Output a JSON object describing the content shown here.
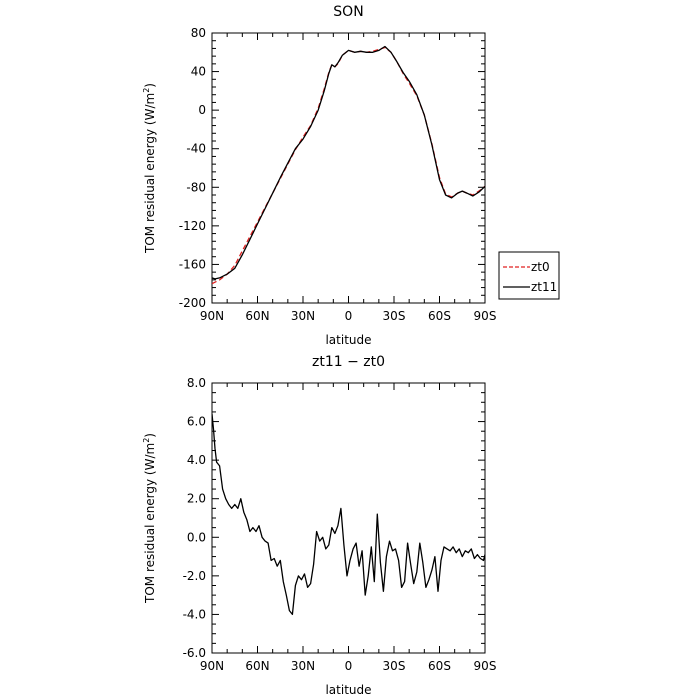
{
  "chart_data": [
    {
      "type": "line",
      "title": "SON",
      "xlabel": "latitude",
      "ylabel": "TOM residual energy",
      "ylabel_unit_prefix": "(W/m",
      "ylabel_unit_sup": "2",
      "ylabel_unit_suffix": ")",
      "x_tick_labels": [
        "90N",
        "60N",
        "30N",
        "0",
        "30S",
        "60S",
        "90S"
      ],
      "x_tick_values": [
        90,
        60,
        30,
        0,
        -30,
        -60,
        -90
      ],
      "y_tick_labels": [
        "-200",
        "-160",
        "-120",
        "-80",
        "-40",
        "0",
        "40",
        "80"
      ],
      "y_tick_values": [
        -200,
        -160,
        -120,
        -80,
        -40,
        0,
        40,
        80
      ],
      "xlim": [
        90,
        -90
      ],
      "ylim": [
        -200,
        80
      ],
      "legend": {
        "placement": "right",
        "entries": [
          "zt0",
          "zt11"
        ]
      },
      "series": [
        {
          "name": "zt0",
          "color": "#e02020",
          "dash": "dashed",
          "x": [
            90,
            85,
            80,
            75,
            70,
            65,
            60,
            55,
            50,
            45,
            40,
            35,
            30,
            25,
            20,
            16,
            13,
            11,
            9,
            7,
            4,
            0,
            -4,
            -8,
            -12,
            -16,
            -20,
            -24,
            -28,
            -32,
            -36,
            -40,
            -45,
            -50,
            -55,
            -60,
            -64,
            -68,
            -72,
            -75,
            -78,
            -82,
            -86,
            -90
          ],
          "y": [
            -180,
            -176,
            -170,
            -161,
            -146,
            -131,
            -116,
            -101,
            -86,
            -71,
            -56,
            -41,
            -28,
            -16,
            2,
            22,
            39,
            47,
            45,
            48,
            57,
            62,
            60,
            61,
            60,
            61,
            63,
            65,
            60,
            50,
            38,
            28,
            15,
            -5,
            -35,
            -70,
            -87,
            -90,
            -86,
            -84,
            -86,
            -88,
            -84,
            -79
          ]
        },
        {
          "name": "zt11",
          "color": "#000000",
          "dash": "solid",
          "x": [
            90,
            88,
            85,
            80,
            75,
            70,
            65,
            60,
            55,
            50,
            45,
            40,
            35,
            30,
            25,
            20,
            16,
            13,
            11,
            9,
            7,
            4,
            0,
            -4,
            -8,
            -12,
            -16,
            -20,
            -24,
            -28,
            -32,
            -36,
            -40,
            -45,
            -50,
            -55,
            -60,
            -64,
            -68,
            -72,
            -75,
            -78,
            -82,
            -86,
            -90
          ],
          "y": [
            -174,
            -175,
            -174,
            -170,
            -164,
            -150,
            -134,
            -118,
            -102,
            -86,
            -70,
            -55,
            -40,
            -30,
            -17,
            0,
            20,
            38,
            47,
            45,
            49,
            57,
            62,
            60,
            61,
            60,
            60,
            62,
            66,
            60,
            50,
            39,
            30,
            16,
            -5,
            -36,
            -72,
            -88,
            -91,
            -86,
            -84,
            -86,
            -89,
            -85,
            -79
          ]
        }
      ]
    },
    {
      "type": "line",
      "title": "zt11 − zt0",
      "xlabel": "latitude",
      "ylabel": "TOM residual energy",
      "ylabel_unit_prefix": "(W/m",
      "ylabel_unit_sup": "2",
      "ylabel_unit_suffix": ")",
      "x_tick_labels": [
        "90N",
        "60N",
        "30N",
        "0",
        "30S",
        "60S",
        "90S"
      ],
      "x_tick_values": [
        90,
        60,
        30,
        0,
        -30,
        -60,
        -90
      ],
      "y_tick_labels": [
        "-6.0",
        "-4.0",
        "-2.0",
        "0.0",
        "2.0",
        "4.0",
        "6.0",
        "8.0"
      ],
      "y_tick_values": [
        -6,
        -4,
        -2,
        0,
        2,
        4,
        6,
        8
      ],
      "xlim": [
        90,
        -90
      ],
      "ylim": [
        -6,
        8
      ],
      "series": [
        {
          "color": "#000000",
          "x": [
            90,
            89,
            88,
            87,
            85,
            83,
            81,
            79,
            77,
            75,
            73,
            71,
            69,
            67,
            65,
            63,
            61,
            59,
            57,
            55,
            53,
            51,
            49,
            47,
            45,
            43,
            41,
            39,
            37,
            35,
            33,
            31,
            29,
            27,
            25,
            23,
            21,
            19,
            17,
            15,
            13,
            11,
            9,
            7,
            5,
            3,
            1,
            -1,
            -3,
            -5,
            -7,
            -9,
            -11,
            -13,
            -15,
            -17,
            -19,
            -21,
            -23,
            -25,
            -27,
            -29,
            -31,
            -33,
            -35,
            -37,
            -39,
            -41,
            -43,
            -45,
            -47,
            -49,
            -51,
            -53,
            -55,
            -57,
            -59,
            -61,
            -63,
            -65,
            -67,
            -69,
            -71,
            -73,
            -75,
            -77,
            -79,
            -81,
            -83,
            -85,
            -87,
            -89,
            -90
          ],
          "y": [
            6.4,
            5.6,
            4.6,
            3.9,
            3.7,
            2.5,
            2.0,
            1.7,
            1.5,
            1.7,
            1.5,
            2.0,
            1.3,
            0.9,
            0.3,
            0.5,
            0.3,
            0.6,
            0.0,
            -0.2,
            -0.3,
            -1.2,
            -1.1,
            -1.5,
            -1.2,
            -2.3,
            -3.0,
            -3.8,
            -4.0,
            -2.5,
            -2.0,
            -2.2,
            -1.9,
            -2.6,
            -2.4,
            -1.4,
            0.3,
            -0.2,
            0.0,
            -0.6,
            -0.4,
            0.5,
            0.2,
            0.6,
            1.5,
            -0.4,
            -2.0,
            -1.2,
            -0.6,
            -0.3,
            -1.5,
            -0.7,
            -3.0,
            -2.0,
            -0.5,
            -2.3,
            1.2,
            -1.3,
            -2.8,
            -1.0,
            -0.2,
            -0.7,
            -0.6,
            -1.2,
            -2.6,
            -2.3,
            -0.3,
            -1.4,
            -2.4,
            -1.8,
            -0.3,
            -1.3,
            -2.6,
            -2.2,
            -1.7,
            -1.0,
            -2.8,
            -1.2,
            -0.5,
            -0.6,
            -0.7,
            -0.5,
            -0.8,
            -0.6,
            -1.0,
            -0.7,
            -0.8,
            -0.6,
            -1.1,
            -0.9,
            -1.1,
            -1.2,
            -0.9
          ]
        }
      ]
    }
  ]
}
